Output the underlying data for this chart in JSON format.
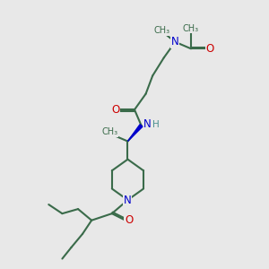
{
  "bg_color": "#e8e8e8",
  "line_color": "#3a6b4a",
  "N_color": "#0000cc",
  "O_color": "#cc0000",
  "H_color": "#4a9090",
  "line_width": 1.5,
  "figsize": [
    3.0,
    3.0
  ],
  "dpi": 100,
  "xlim": [
    0.5,
    9.5
  ],
  "ylim": [
    0.5,
    10.5
  ]
}
